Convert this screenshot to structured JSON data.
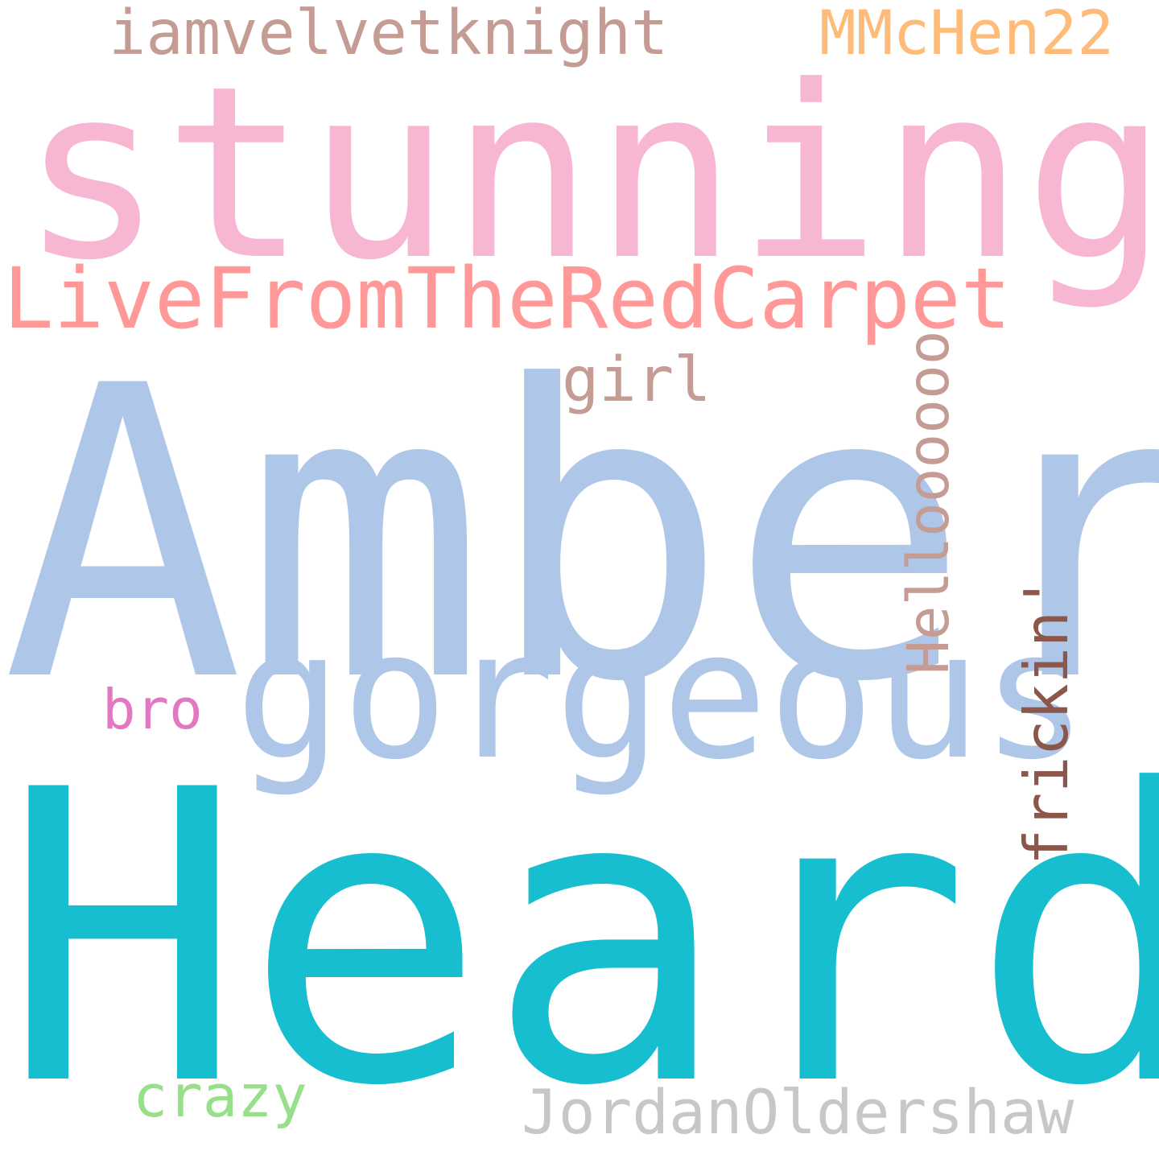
{
  "background_color": "#ffffff",
  "words": [
    {
      "id": "amber",
      "text": "Amber",
      "color": "#aec7e8"
    },
    {
      "id": "heard",
      "text": "Heard",
      "color": "#17becf"
    },
    {
      "id": "stunning",
      "text": "stunning",
      "color": "#f7b6d2"
    },
    {
      "id": "gorgeous",
      "text": "gorgeous",
      "color": "#aec7e8"
    },
    {
      "id": "livefromtheredcarpet",
      "text": "LiveFromTheRedCarpet",
      "color": "#ff9896"
    },
    {
      "id": "iamvelvetknight",
      "text": "iamvelvetknight",
      "color": "#c49c94"
    },
    {
      "id": "mmchen22",
      "text": "MMcHen22",
      "color": "#ffbb78"
    },
    {
      "id": "girl",
      "text": "girl",
      "color": "#c49c94"
    },
    {
      "id": "helloooooo",
      "text": "Helloooooo",
      "color": "#c49c94"
    },
    {
      "id": "frickin",
      "text": "frickin'",
      "color": "#8c564b"
    },
    {
      "id": "bro",
      "text": "bro",
      "color": "#e377c2"
    },
    {
      "id": "crazy",
      "text": "crazy",
      "color": "#98df8a"
    },
    {
      "id": "jordanoldershaw",
      "text": "JordanOldershaw",
      "color": "#c7c7c7"
    }
  ]
}
